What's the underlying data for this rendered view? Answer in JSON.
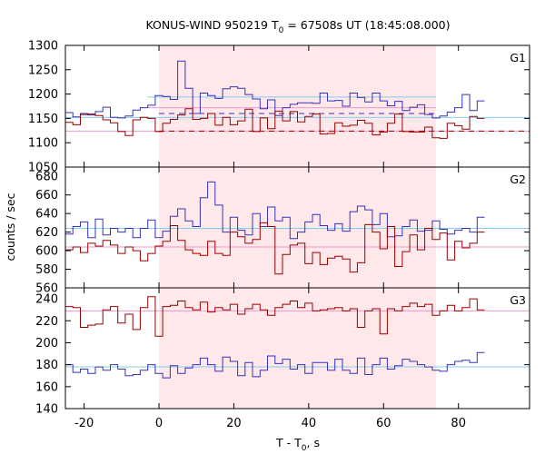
{
  "chart_data": {
    "type": "line",
    "title": "KONUS-WIND 950219 T",
    "title_sub": "0",
    "title_rest": " = 67508s UT (18:45:08.000)",
    "xlabel": "T - T",
    "xlabel_sub": "0",
    "xlabel_rest": ", s",
    "ylabel": "counts / sec",
    "xlim": [
      -25,
      99
    ],
    "x_ticks": [
      -20,
      0,
      20,
      40,
      60,
      80
    ],
    "x_tick_labels": [
      "-20",
      "0",
      "20",
      "40",
      "60",
      "80"
    ],
    "shaded_interval": [
      0,
      74
    ],
    "colors": {
      "blue": "#3333bb",
      "red": "#990000",
      "cyan": "#88ccee",
      "pink": "#ee99cc",
      "shade": "#ffe8ea"
    },
    "panels": [
      {
        "label": "G1",
        "ylim": [
          1050,
          1300
        ],
        "y_ticks": [
          1050,
          1100,
          1150,
          1200,
          1250,
          1300
        ],
        "y_tick_labels": [
          "1050",
          "1100",
          "1150",
          "1200",
          "1250",
          "1300"
        ],
        "bin_start": -25,
        "bin_width": 2,
        "series": [
          {
            "color": "blue",
            "values": [
              1162,
              1153,
              1160,
              1157,
              1164,
              1173,
              1152,
              1151,
              1155,
              1167,
              1172,
              1177,
              1197,
              1195,
              1189,
              1268,
              1212,
              1160,
              1202,
              1197,
              1191,
              1211,
              1215,
              1212,
              1199,
              1190,
              1170,
              1188,
              1156,
              1172,
              1179,
              1182,
              1182,
              1181,
              1202,
              1186,
              1187,
              1175,
              1202,
              1193,
              1184,
              1202,
              1186,
              1176,
              1185,
              1166,
              1173,
              1178,
              1158,
              1151,
              1155,
              1163,
              1172,
              1199,
              1166,
              1186
            ]
          },
          {
            "color": "red",
            "values": [
              1142,
              1137,
              1158,
              1159,
              1156,
              1147,
              1141,
              1123,
              1115,
              1147,
              1152,
              1150,
              1123,
              1140,
              1148,
              1157,
              1170,
              1148,
              1150,
              1160,
              1136,
              1152,
              1137,
              1145,
              1169,
              1123,
              1151,
              1129,
              1165,
              1145,
              1164,
              1143,
              1154,
              1159,
              1118,
              1119,
              1141,
              1134,
              1136,
              1146,
              1140,
              1116,
              1122,
              1140,
              1159,
              1123,
              1122,
              1122,
              1132,
              1110,
              1109,
              1140,
              1135,
              1128,
              1154,
              1150
            ]
          }
        ],
        "ref_lines": [
          {
            "color": "cyan",
            "style": "solid",
            "x": [
              -25,
              99
            ],
            "y": 1152
          },
          {
            "color": "cyan",
            "style": "solid",
            "x": [
              -3,
              74
            ],
            "y": 1194
          },
          {
            "color": "pink",
            "style": "solid",
            "x": [
              -25,
              99
            ],
            "y": 1124
          },
          {
            "color": "pink",
            "style": "solid",
            "x": [
              -3,
              74
            ],
            "y": 1172
          },
          {
            "color": "blue",
            "style": "dashed",
            "x": [
              0,
              74
            ],
            "y": 1160
          },
          {
            "color": "red",
            "style": "dashed",
            "x": [
              0,
              99
            ],
            "y": 1124
          }
        ]
      },
      {
        "label": "G2",
        "ylim": [
          560,
          690
        ],
        "y_ticks": [
          560,
          580,
          600,
          620,
          640,
          660,
          680
        ],
        "y_tick_labels": [
          "560",
          "580",
          "600",
          "620",
          "640",
          "660",
          "680"
        ],
        "bin_start": -25,
        "bin_width": 2,
        "series": [
          {
            "color": "blue",
            "values": [
              618,
              626,
              631,
              614,
              634,
              617,
              624,
              620,
              624,
              614,
              624,
              633,
              614,
              621,
              637,
              645,
              632,
              626,
              657,
              674,
              649,
              620,
              636,
              622,
              617,
              640,
              626,
              647,
              632,
              636,
              613,
              620,
              631,
              639,
              627,
              622,
              629,
              621,
              642,
              648,
              644,
              628,
              640,
              615,
              616,
              626,
              633,
              621,
              622,
              632,
              623,
              618,
              622,
              624,
              620,
              636
            ]
          },
          {
            "color": "red",
            "values": [
              601,
              604,
              598,
              608,
              605,
              611,
              606,
              597,
              604,
              600,
              589,
              597,
              605,
              610,
              627,
              611,
              601,
              597,
              595,
              610,
              597,
              595,
              620,
              615,
              608,
              612,
              630,
              626,
              575,
              596,
              606,
              608,
              586,
              598,
              585,
              592,
              594,
              591,
              577,
              587,
              628,
              620,
              602,
              626,
              583,
              599,
              617,
              601,
              624,
              612,
              619,
              590,
              610,
              603,
              608,
              620
            ]
          }
        ],
        "ref_lines": [
          {
            "color": "cyan",
            "style": "solid",
            "x": [
              -25,
              99
            ],
            "y": 624
          },
          {
            "color": "pink",
            "style": "solid",
            "x": [
              -25,
              99
            ],
            "y": 604
          }
        ]
      },
      {
        "label": "G3",
        "ylim": [
          140,
          250
        ],
        "y_ticks": [
          140,
          160,
          180,
          200,
          220,
          240
        ],
        "y_tick_labels": [
          "140",
          "160",
          "180",
          "200",
          "220",
          "240"
        ],
        "bin_start": -25,
        "bin_width": 2,
        "series": [
          {
            "color": "blue",
            "values": [
              180,
              173,
              176,
              172,
              178,
              175,
              180,
              176,
              170,
              171,
              175,
              180,
              172,
              168,
              179,
              172,
              177,
              180,
              186,
              180,
              174,
              187,
              183,
              170,
              182,
              169,
              175,
              188,
              181,
              185,
              176,
              180,
              172,
              182,
              182,
              175,
              185,
              175,
              172,
              186,
              171,
              180,
              186,
              176,
              179,
              185,
              183,
              180,
              178,
              175,
              174,
              180,
              183,
              184,
              182,
              191
            ]
          },
          {
            "color": "red",
            "values": [
              233,
              232,
              214,
              216,
              217,
              230,
              233,
              218,
              226,
              212,
              232,
              242,
              206,
              233,
              234,
              238,
              232,
              230,
              237,
              228,
              232,
              230,
              235,
              226,
              231,
              235,
              230,
              225,
              232,
              235,
              238,
              232,
              236,
              229,
              230,
              231,
              232,
              229,
              231,
              214,
              229,
              231,
              208,
              231,
              229,
              233,
              236,
              233,
              235,
              225,
              229,
              234,
              229,
              232,
              240,
              230
            ]
          }
        ],
        "ref_lines": [
          {
            "color": "pink",
            "style": "solid",
            "x": [
              -25,
              99
            ],
            "y": 229
          },
          {
            "color": "cyan",
            "style": "solid",
            "x": [
              -25,
              99
            ],
            "y": 178
          }
        ]
      }
    ]
  }
}
